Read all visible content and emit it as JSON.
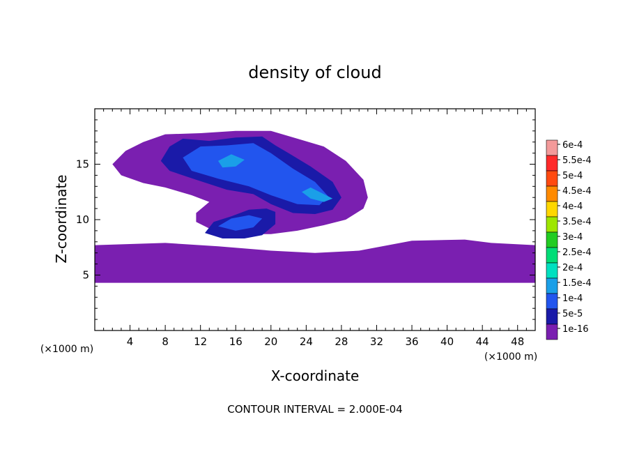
{
  "chart_data": {
    "type": "heatmap",
    "title": "density of cloud",
    "xlabel": "X-coordinate",
    "ylabel": "Z-coordinate",
    "x_unit_label": "(×1000 m)",
    "y_unit_label": "(×1000 m)",
    "footnote": "CONTOUR INTERVAL = 2.000E-04",
    "xlim": [
      0,
      50
    ],
    "ylim": [
      0,
      20
    ],
    "x_ticks": [
      4,
      8,
      12,
      16,
      20,
      24,
      28,
      32,
      36,
      40,
      44,
      48
    ],
    "y_ticks": [
      5,
      10,
      15
    ],
    "colorbar": {
      "levels": [
        {
          "label": "6e-4",
          "color": "#f39a9a"
        },
        {
          "label": "5.5e-4",
          "color": "#ff2a2a"
        },
        {
          "label": "5e-4",
          "color": "#ff4a10"
        },
        {
          "label": "4.5e-4",
          "color": "#ff8a00"
        },
        {
          "label": "4e-4",
          "color": "#ffd700"
        },
        {
          "label": "3.5e-4",
          "color": "#9ee600"
        },
        {
          "label": "3e-4",
          "color": "#22cc22"
        },
        {
          "label": "2.5e-4",
          "color": "#00dd77"
        },
        {
          "label": "2e-4",
          "color": "#00e0c0"
        },
        {
          "label": "1.5e-4",
          "color": "#1a9fe8"
        },
        {
          "label": "1e-4",
          "color": "#2255ee"
        },
        {
          "label": "5e-5",
          "color": "#1a1aa8"
        },
        {
          "label": "1e-16",
          "color": "#7a1fb0"
        }
      ]
    },
    "regions": [
      {
        "level": "1e-16",
        "polygon": [
          [
            0,
            4.3
          ],
          [
            50,
            4.3
          ],
          [
            50,
            7.7
          ],
          [
            45,
            7.9
          ],
          [
            42,
            8.2
          ],
          [
            36,
            8.1
          ],
          [
            30,
            7.2
          ],
          [
            25,
            7.0
          ],
          [
            20,
            7.2
          ],
          [
            14,
            7.6
          ],
          [
            8,
            7.9
          ],
          [
            0,
            7.7
          ]
        ]
      },
      {
        "level": "1e-16",
        "polygon": [
          [
            3.5,
            16.2
          ],
          [
            5.5,
            17.0
          ],
          [
            8,
            17.7
          ],
          [
            12,
            17.8
          ],
          [
            16,
            18.0
          ],
          [
            20,
            18.0
          ],
          [
            23,
            17.3
          ],
          [
            26,
            16.6
          ],
          [
            28.5,
            15.3
          ],
          [
            30.5,
            13.6
          ],
          [
            31,
            12.0
          ],
          [
            30.5,
            11.0
          ],
          [
            28.5,
            10.0
          ],
          [
            26,
            9.5
          ],
          [
            23,
            9.0
          ],
          [
            20,
            8.7
          ],
          [
            16,
            8.7
          ],
          [
            13.5,
            9.0
          ],
          [
            11.5,
            9.8
          ],
          [
            11.5,
            10.6
          ],
          [
            13,
            11.6
          ],
          [
            11,
            12.2
          ],
          [
            8,
            12.9
          ],
          [
            5.5,
            13.3
          ],
          [
            3,
            14.0
          ],
          [
            2,
            15.0
          ]
        ]
      },
      {
        "level": "5e-5",
        "polygon": [
          [
            7.5,
            15.3
          ],
          [
            8.5,
            16.6
          ],
          [
            10,
            17.3
          ],
          [
            13,
            17.1
          ],
          [
            16,
            17.4
          ],
          [
            19,
            17.5
          ],
          [
            20.5,
            16.7
          ],
          [
            22,
            16.0
          ],
          [
            24.5,
            14.8
          ],
          [
            27,
            13.4
          ],
          [
            28,
            12.0
          ],
          [
            27,
            10.9
          ],
          [
            25,
            10.5
          ],
          [
            22.5,
            10.6
          ],
          [
            20,
            11.4
          ],
          [
            18,
            12.3
          ],
          [
            15,
            12.7
          ],
          [
            11.5,
            13.6
          ],
          [
            8.5,
            14.4
          ]
        ]
      },
      {
        "level": "5e-5",
        "polygon": [
          [
            12.5,
            8.8
          ],
          [
            14.5,
            8.3
          ],
          [
            17,
            8.3
          ],
          [
            19,
            8.6
          ],
          [
            20.5,
            9.6
          ],
          [
            20.5,
            10.7
          ],
          [
            19.5,
            11.0
          ],
          [
            17.5,
            10.9
          ],
          [
            15.5,
            10.3
          ],
          [
            13.5,
            9.8
          ]
        ]
      },
      {
        "level": "1e-4",
        "polygon": [
          [
            10,
            15.6
          ],
          [
            12,
            16.6
          ],
          [
            15,
            16.7
          ],
          [
            18,
            16.9
          ],
          [
            20,
            16.0
          ],
          [
            22.5,
            14.6
          ],
          [
            25,
            13.4
          ],
          [
            26.5,
            12.1
          ],
          [
            25.5,
            11.3
          ],
          [
            23,
            11.4
          ],
          [
            20,
            12.2
          ],
          [
            17.5,
            13.0
          ],
          [
            14,
            13.7
          ],
          [
            11,
            14.4
          ]
        ]
      },
      {
        "level": "1e-4",
        "polygon": [
          [
            14,
            9.4
          ],
          [
            16,
            9.0
          ],
          [
            18,
            9.3
          ],
          [
            19,
            10.1
          ],
          [
            17.5,
            10.4
          ],
          [
            15.5,
            10.1
          ]
        ]
      },
      {
        "level": "1.5e-4",
        "polygon": [
          [
            24.5,
            12.9
          ],
          [
            26,
            12.3
          ],
          [
            27,
            11.9
          ],
          [
            26,
            11.6
          ],
          [
            24.5,
            11.9
          ],
          [
            23.5,
            12.5
          ]
        ]
      },
      {
        "level": "1.5e-4",
        "polygon": [
          [
            14,
            15.3
          ],
          [
            15.5,
            15.9
          ],
          [
            17,
            15.4
          ],
          [
            16,
            14.8
          ],
          [
            14.5,
            14.7
          ]
        ]
      }
    ]
  }
}
